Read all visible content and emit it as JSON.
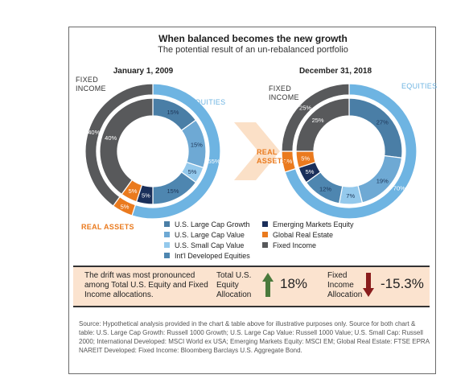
{
  "title": "When balanced becomes the new growth",
  "subtitle": "The potential result of an un-rebalanced portfolio",
  "chart_data": [
    {
      "type": "pie",
      "title": "January 1, 2009",
      "outer_ring": [
        {
          "category": "Equities",
          "value": 55,
          "label": "55%",
          "color": "#6eb4e2"
        },
        {
          "category": "Real Assets",
          "value": 5,
          "label": "5%",
          "color": "#ea7a1e"
        },
        {
          "category": "Fixed Income",
          "value": 40,
          "label": "40%",
          "color": "#58595b"
        }
      ],
      "inner_ring": [
        {
          "category": "U.S. Large Cap Growth",
          "value": 15,
          "label": "15%",
          "color": "#4a7ea6"
        },
        {
          "category": "U.S. Large Cap Value",
          "value": 15,
          "label": "15%",
          "color": "#6ea9d4"
        },
        {
          "category": "U.S. Small Cap Value",
          "value": 5,
          "label": "5%",
          "color": "#94c9ec"
        },
        {
          "category": "Int'l Developed Equities",
          "value": 15,
          "label": "15%",
          "color": "#4e86b0"
        },
        {
          "category": "Emerging Markets Equity",
          "value": 5,
          "label": "5%",
          "color": "#1a2f5a"
        },
        {
          "category": "Global Real Estate",
          "value": 5,
          "label": "5%",
          "color": "#ea7a1e"
        },
        {
          "category": "Fixed Income",
          "value": 40,
          "label": "40%",
          "color": "#58595b"
        }
      ]
    },
    {
      "type": "pie",
      "title": "December 31, 2018",
      "outer_ring": [
        {
          "category": "Equities",
          "value": 70,
          "label": "70%",
          "color": "#6eb4e2"
        },
        {
          "category": "Real Assets",
          "value": 5,
          "label": "5%",
          "color": "#ea7a1e"
        },
        {
          "category": "Fixed Income",
          "value": 25,
          "label": "25%",
          "color": "#58595b"
        }
      ],
      "inner_ring": [
        {
          "category": "U.S. Large Cap Growth",
          "value": 27,
          "label": "27%",
          "color": "#4a7ea6"
        },
        {
          "category": "U.S. Large Cap Value",
          "value": 19,
          "label": "19%",
          "color": "#6ea9d4"
        },
        {
          "category": "U.S. Small Cap Value",
          "value": 7,
          "label": "7%",
          "color": "#94c9ec"
        },
        {
          "category": "Int'l Developed Equities",
          "value": 12,
          "label": "12%",
          "color": "#4e86b0"
        },
        {
          "category": "Emerging Markets Equity",
          "value": 5,
          "label": "5%",
          "color": "#1a2f5a"
        },
        {
          "category": "Global Real Estate",
          "value": 5,
          "label": "5%",
          "color": "#ea7a1e"
        },
        {
          "category": "Fixed Income",
          "value": 25,
          "label": "25%",
          "color": "#58595b"
        }
      ]
    }
  ],
  "ring_labels": {
    "fixed_income": "FIXED INCOME",
    "equities": "EQUITIES",
    "real_assets": "REAL ASSETS"
  },
  "legend_left": [
    {
      "label": "U.S. Large Cap Growth",
      "color": "#4a7ea6"
    },
    {
      "label": "U.S. Large Cap Value",
      "color": "#6ea9d4"
    },
    {
      "label": "U.S. Small Cap Value",
      "color": "#94c9ec"
    },
    {
      "label": "Int'l Developed Equities",
      "color": "#4e86b0"
    }
  ],
  "legend_right": [
    {
      "label": "Emerging Markets Equity",
      "color": "#1a2f5a"
    },
    {
      "label": "Global Real Estate",
      "color": "#ea7a1e"
    },
    {
      "label": "Fixed Income",
      "color": "#58595b"
    }
  ],
  "drift": {
    "text": "The drift was most pronounced among Total U.S. Equity and Fixed Income allocations.",
    "equity_label": "Total U.S. Equity Allocation",
    "equity_value": "18%",
    "equity_direction": "up",
    "fixed_label": "Fixed Income Allocation",
    "fixed_value": "-15.3%",
    "fixed_direction": "down",
    "up_color": "#4a7a3c",
    "down_color": "#8a1c1c"
  },
  "source": "Source: Hypothetical analysis provided in the chart & table above for illustrative purposes only. Source for both chart & table: U.S. Large Cap Growth: Russell 1000 Growth; U.S. Large Cap Value: Russell 1000 Value; U.S. Small Cap: Russell 2000; International Developed: MSCI World ex USA; Emerging Markets Equity: MSCI EM; Global Real Estate: FTSE EPRA NAREIT Developed: Fixed Income: Bloomberg Barclays U.S. Aggregate Bond."
}
